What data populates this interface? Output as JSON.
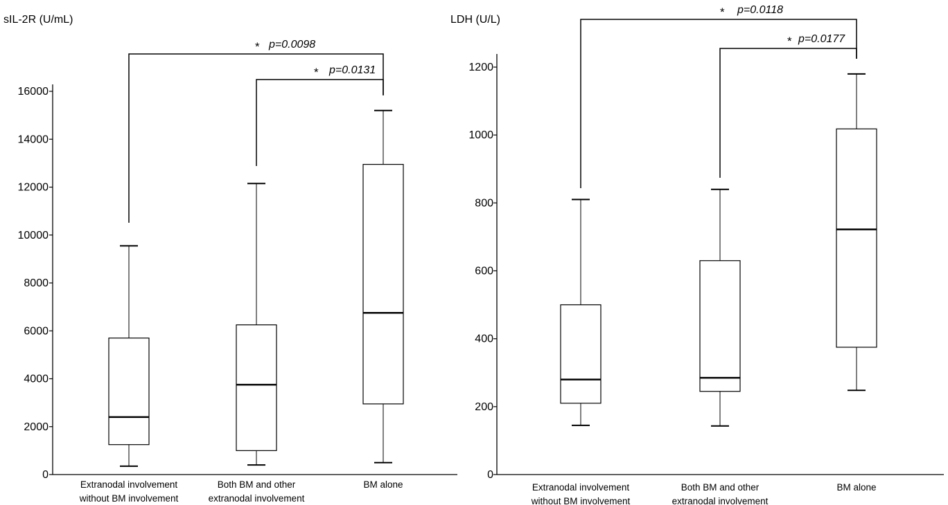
{
  "chart_data": [
    {
      "type": "box",
      "ylabel": "sIL-2R (U/mL)",
      "ylim": [
        0,
        16000
      ],
      "yticks": [
        0,
        2000,
        4000,
        6000,
        8000,
        10000,
        12000,
        14000,
        16000
      ],
      "categories": [
        [
          "Extranodal involvement",
          "without BM involvement"
        ],
        [
          "Both BM and other",
          "extranodal involvement"
        ],
        [
          "BM alone"
        ]
      ],
      "boxes": [
        {
          "min": 350,
          "q1": 1250,
          "median": 2400,
          "q3": 5700,
          "max": 9550
        },
        {
          "min": 400,
          "q1": 1000,
          "median": 3750,
          "q3": 6250,
          "max": 12150
        },
        {
          "min": 500,
          "q1": 2950,
          "median": 6750,
          "q3": 12950,
          "max": 15200
        }
      ],
      "significance": [
        {
          "from": 0,
          "to": 2,
          "star": "*",
          "label": "p=0.0098"
        },
        {
          "from": 1,
          "to": 2,
          "star": "*",
          "label": "p=0.0131"
        }
      ]
    },
    {
      "type": "box",
      "ylabel": "LDH (U/L)",
      "ylim": [
        0,
        1200
      ],
      "yticks": [
        0,
        200,
        400,
        600,
        800,
        1000,
        1200
      ],
      "categories": [
        [
          "Extranodal involvement",
          "without BM involvement"
        ],
        [
          "Both BM and other",
          "extranodal involvement"
        ],
        [
          "BM alone"
        ]
      ],
      "boxes": [
        {
          "min": 145,
          "q1": 210,
          "median": 280,
          "q3": 500,
          "max": 810
        },
        {
          "min": 143,
          "q1": 245,
          "median": 285,
          "q3": 630,
          "max": 840
        },
        {
          "min": 248,
          "q1": 375,
          "median": 722,
          "q3": 1018,
          "max": 1180
        }
      ],
      "significance": [
        {
          "from": 0,
          "to": 2,
          "star": "*",
          "label": "p=0.0118"
        },
        {
          "from": 1,
          "to": 2,
          "star": "*",
          "label": "p=0.0177"
        }
      ]
    }
  ],
  "colors": {
    "line": "#000000",
    "whisker": "#555555",
    "box_fill": "#ffffff"
  }
}
